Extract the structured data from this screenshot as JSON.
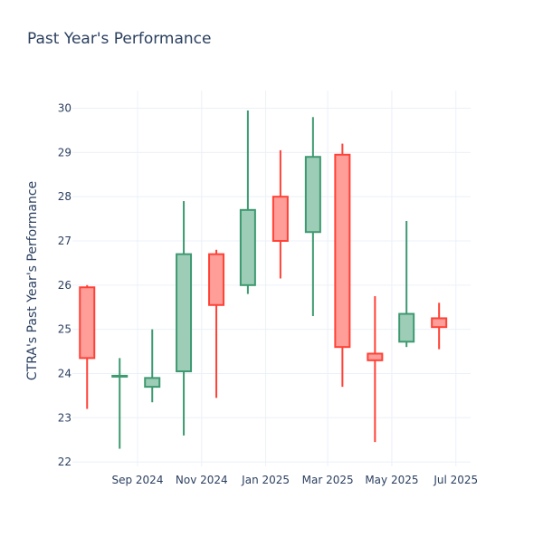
{
  "chart_data": {
    "type": "candlestick",
    "title": "Past Year's Performance",
    "xlabel": "",
    "ylabel": "CTRA's Past Year's Performance",
    "x_ticks": [
      "Sep 2024",
      "Nov 2024",
      "Jan 2025",
      "Mar 2025",
      "May 2025",
      "Jul 2025"
    ],
    "y_ticks": [
      22,
      23,
      24,
      25,
      26,
      27,
      28,
      29,
      30
    ],
    "ylim": [
      21.9,
      30.4
    ],
    "grid": true,
    "legend": "none",
    "colors": {
      "increasing_line": "#3d9970",
      "increasing_fill": "#9ecdb7",
      "decreasing_line": "#ff4136",
      "decreasing_fill": "#ff9e99",
      "grid": "#ebf0f8",
      "text": "#2a3f5f"
    },
    "candles": [
      {
        "date": "2024-07-15",
        "open": 25.95,
        "high": 26.0,
        "low": 23.2,
        "close": 24.35
      },
      {
        "date": "2024-08-15",
        "open": 23.95,
        "high": 24.35,
        "low": 22.3,
        "close": 23.95
      },
      {
        "date": "2024-09-15",
        "open": 23.7,
        "high": 25.0,
        "low": 23.35,
        "close": 23.9
      },
      {
        "date": "2024-10-15",
        "open": 24.05,
        "high": 27.9,
        "low": 22.6,
        "close": 26.7
      },
      {
        "date": "2024-11-15",
        "open": 26.7,
        "high": 26.8,
        "low": 23.45,
        "close": 25.55
      },
      {
        "date": "2024-12-15",
        "open": 26.0,
        "high": 29.95,
        "low": 25.8,
        "close": 27.7
      },
      {
        "date": "2025-01-15",
        "open": 28.0,
        "high": 29.05,
        "low": 26.15,
        "close": 27.0
      },
      {
        "date": "2025-02-15",
        "open": 27.2,
        "high": 29.8,
        "low": 25.3,
        "close": 28.9
      },
      {
        "date": "2025-03-15",
        "open": 28.95,
        "high": 29.2,
        "low": 23.7,
        "close": 24.6
      },
      {
        "date": "2025-04-15",
        "open": 24.45,
        "high": 25.75,
        "low": 22.45,
        "close": 24.3
      },
      {
        "date": "2025-05-15",
        "open": 24.72,
        "high": 27.45,
        "low": 24.6,
        "close": 25.35
      },
      {
        "date": "2025-06-15",
        "open": 25.25,
        "high": 25.6,
        "low": 24.55,
        "close": 25.05
      }
    ]
  }
}
